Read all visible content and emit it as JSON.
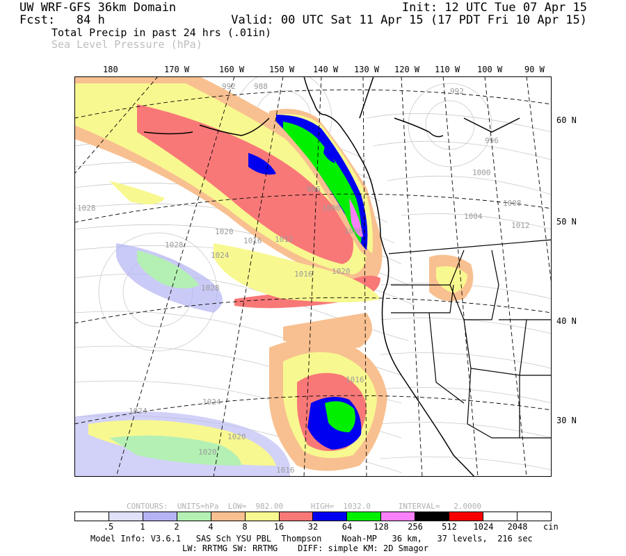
{
  "header": {
    "title": "UW WRF-GFS 36km Domain",
    "fcst": "Fcst:   84 h",
    "init": "Init: 12 UTC Tue 07 Apr 15",
    "valid": "Valid: 00 UTC Sat 11 Apr 15 (17 PDT Fri 10 Apr 15)",
    "field_primary": "Total Precip in past 24 hrs (.01in)",
    "field_secondary": "Sea Level Pressure (hPa)"
  },
  "longitude_labels": [
    "180",
    "170 W",
    "160 W",
    "150 W",
    "140 W",
    "130 W",
    "120 W",
    "110 W",
    "100 W",
    "90 W"
  ],
  "latitude_labels": [
    "60 N",
    "50 N",
    "40 N",
    "30 N"
  ],
  "pressure_labels": [
    "992",
    "988",
    "992",
    "996",
    "1000",
    "1004",
    "1012",
    "1008",
    "996",
    "1000",
    "1008",
    "1028",
    "1020",
    "1016",
    "1012",
    "1028",
    "1024",
    "1016",
    "1020",
    "1028",
    "1016",
    "1024",
    "1024",
    "1020",
    "1020",
    "1016"
  ],
  "contour_info": "CONTOURS:  UNITS=hPa  LOW=  982.00      HIGH=  1032.0      INTERVAL=   2.0000",
  "colorbar": {
    "colors": [
      "#ffffff",
      "#e0e0f8",
      "#b4b4f4",
      "#b4f0b4",
      "#f8c090",
      "#f8f890",
      "#f87878",
      "#0000f0",
      "#00f000",
      "#f880f8",
      "#000000",
      "#f80000",
      "#ffffff",
      "#ffffff"
    ],
    "labels": [
      ".5",
      "1",
      "2",
      "4",
      "8",
      "16",
      "32",
      "64",
      "128",
      "256",
      "512",
      "1024",
      "2048"
    ],
    "unit": "cin"
  },
  "model_info": {
    "line1": "Model Info: V3.6.1   SAS Sch YSU PBL  Thompson    Noah-MP   36 km,   37 levels,  216 sec",
    "line2": "LW: RRTMG SW: RRTMG    DIFF: simple KM: 2D Smagor"
  }
}
